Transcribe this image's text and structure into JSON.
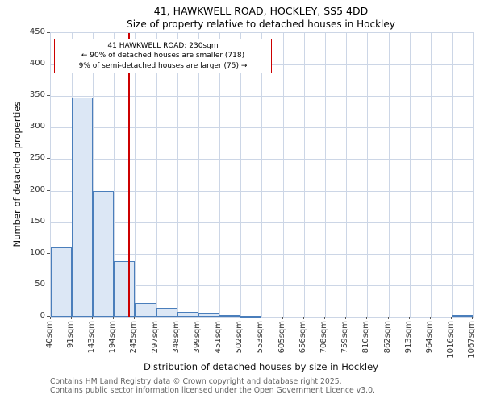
{
  "title": "41, HAWKWELL ROAD, HOCKLEY, SS5 4DD",
  "subtitle": "Size of property relative to detached houses in Hockley",
  "annotation": {
    "line1": "41 HAWKWELL ROAD: 230sqm",
    "line2": "← 90% of detached houses are smaller (718)",
    "line3": "9% of semi-detached houses are larger (75) →"
  },
  "footer": {
    "line1": "Contains HM Land Registry data © Crown copyright and database right 2025.",
    "line2": "Contains public sector information licensed under the Open Government Licence v3.0."
  },
  "chart_data": {
    "type": "bar",
    "title": "41, HAWKWELL ROAD, HOCKLEY, SS5 4DD",
    "subtitle": "Size of property relative to detached houses in Hockley",
    "xlabel": "Distribution of detached houses by size in Hockley",
    "ylabel": "Number of detached properties",
    "ylim": [
      0,
      450
    ],
    "ytick_labels": [
      0,
      50,
      100,
      150,
      200,
      250,
      300,
      350,
      400,
      450
    ],
    "bin_edges_sqm": [
      40,
      91,
      143,
      194,
      245,
      297,
      348,
      399,
      451,
      502,
      553,
      605,
      656,
      708,
      759,
      810,
      862,
      913,
      964,
      1016,
      1067
    ],
    "xtick_labels": [
      "40sqm",
      "91sqm",
      "143sqm",
      "194sqm",
      "245sqm",
      "297sqm",
      "348sqm",
      "399sqm",
      "451sqm",
      "502sqm",
      "553sqm",
      "605sqm",
      "656sqm",
      "708sqm",
      "759sqm",
      "810sqm",
      "862sqm",
      "913sqm",
      "964sqm",
      "1016sqm",
      "1067sqm"
    ],
    "values": [
      110,
      348,
      200,
      88,
      22,
      14,
      8,
      6,
      2,
      1,
      0,
      0,
      0,
      0,
      0,
      0,
      0,
      0,
      0,
      2
    ],
    "marker_sqm": 230,
    "grid": "on",
    "colors": {
      "bar_fill": "#dce7f5",
      "bar_edge": "#4a7ebb",
      "marker_line": "#cc0000",
      "grid_line": "#ccd6e6"
    }
  }
}
